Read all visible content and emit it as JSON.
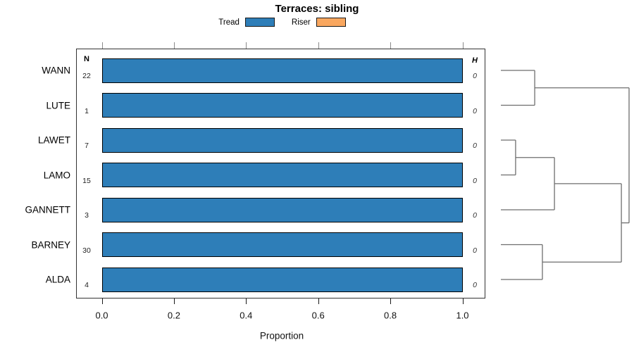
{
  "title": "Terraces: sibling",
  "legend": {
    "items": [
      {
        "label": "Tread",
        "color": "#2E7EB8"
      },
      {
        "label": "Riser",
        "color": "#F9A75F"
      }
    ]
  },
  "chart_data": {
    "type": "bar",
    "orientation": "horizontal",
    "title": "Terraces: sibling",
    "xlabel": "Proportion",
    "xlim": [
      0.0,
      1.0
    ],
    "x_ticks": [
      0.0,
      0.2,
      0.4,
      0.6,
      0.8,
      1.0
    ],
    "x_tick_labels": [
      "0.0",
      "0.2",
      "0.4",
      "0.6",
      "0.8",
      "1.0"
    ],
    "grid": false,
    "legend_position": "top",
    "columns": {
      "n_header": "N",
      "h_header": "H"
    },
    "series": [
      {
        "name": "Tread",
        "key": "tread",
        "color": "#2E7EB8"
      },
      {
        "name": "Riser",
        "key": "riser",
        "color": "#F9A75F"
      }
    ],
    "rows": [
      {
        "label": "WANN",
        "n": 22,
        "tread": 1.0,
        "riser": 0.0,
        "h": 0
      },
      {
        "label": "LUTE",
        "n": 1,
        "tread": 1.0,
        "riser": 0.0,
        "h": 0
      },
      {
        "label": "LAWET",
        "n": 7,
        "tread": 1.0,
        "riser": 0.0,
        "h": 0
      },
      {
        "label": "LAMO",
        "n": 15,
        "tread": 1.0,
        "riser": 0.0,
        "h": 0
      },
      {
        "label": "GANNETT",
        "n": 3,
        "tread": 1.0,
        "riser": 0.0,
        "h": 0
      },
      {
        "label": "BARNEY",
        "n": 30,
        "tread": 1.0,
        "riser": 0.0,
        "h": 0
      },
      {
        "label": "ALDA",
        "n": 4,
        "tread": 1.0,
        "riser": 0.0,
        "h": 0
      }
    ],
    "dendrogram": {
      "merges": [
        {
          "id": "m1",
          "children": [
            "WANN",
            "LUTE"
          ],
          "height": 0.264
        },
        {
          "id": "m2",
          "children": [
            "LAWET",
            "LAMO"
          ],
          "height": 0.115
        },
        {
          "id": "m3",
          "children": [
            "m2",
            "GANNETT"
          ],
          "height": 0.418
        },
        {
          "id": "m4",
          "children": [
            "BARNEY",
            "ALDA"
          ],
          "height": 0.324
        },
        {
          "id": "m5",
          "children": [
            "m3",
            "m4"
          ],
          "height": 0.94
        },
        {
          "id": "m6",
          "children": [
            "m1",
            "m5"
          ],
          "height": 1.0
        }
      ]
    }
  },
  "colors": {
    "bar_border": "#000000",
    "dendro_line": "#6e6e6e",
    "top_tick": "#8a8a8a",
    "bottom_tick": "#1a1a1a"
  }
}
